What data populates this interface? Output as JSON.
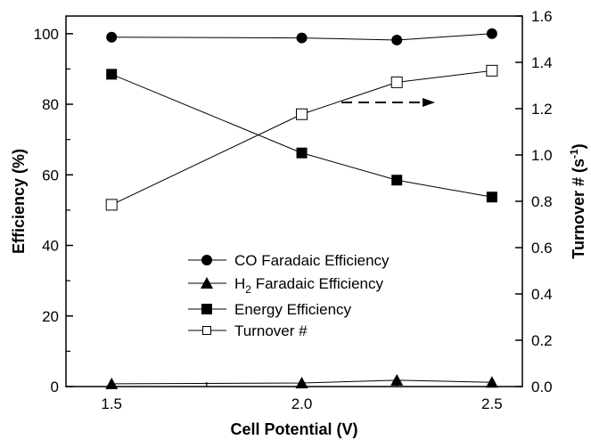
{
  "chart_data": {
    "type": "line",
    "x": [
      1.5,
      2.0,
      2.25,
      2.5
    ],
    "xlabel": "Cell Potential (V)",
    "ylabel_left": "Efficiency (%)",
    "ylabel_right_main": "Turnover # (s",
    "ylabel_right_sup": "-1",
    "ylabel_right_end": ")",
    "xlim": [
      1.38,
      2.58
    ],
    "ylim_left": [
      0,
      105
    ],
    "ylim_right": [
      0,
      1.6
    ],
    "xticks": [
      "1.5",
      "2.0",
      "2.5"
    ],
    "xtick_values": [
      1.5,
      2.0,
      2.5
    ],
    "yticks_left": [
      "0",
      "20",
      "40",
      "60",
      "80",
      "100"
    ],
    "ytick_values_left": [
      0,
      20,
      40,
      60,
      80,
      100
    ],
    "yticks_right": [
      "0.0",
      "0.2",
      "0.4",
      "0.6",
      "0.8",
      "1.0",
      "1.2",
      "1.4",
      "1.6"
    ],
    "ytick_values_right": [
      0,
      0.2,
      0.4,
      0.6,
      0.8,
      1.0,
      1.2,
      1.4,
      1.6
    ],
    "grid": false,
    "legend_position": "lower-center",
    "series": [
      {
        "name": "CO Faradaic Efficiency",
        "axis": "left",
        "marker": "circle-filled",
        "values": [
          99,
          98.8,
          98.2,
          100
        ]
      },
      {
        "name_main": "H",
        "name_sub": "2",
        "name_rest": " Faradaic Efficiency",
        "axis": "left",
        "marker": "triangle-filled",
        "values": [
          0.8,
          1.0,
          1.8,
          1.2
        ]
      },
      {
        "name": "Energy Efficiency",
        "axis": "left",
        "marker": "square-filled",
        "values": [
          88.5,
          66.2,
          58.5,
          53.7
        ]
      },
      {
        "name": "Turnover #",
        "axis": "right",
        "marker": "square-open",
        "values": [
          0.785,
          1.176,
          1.314,
          1.364
        ]
      }
    ]
  }
}
